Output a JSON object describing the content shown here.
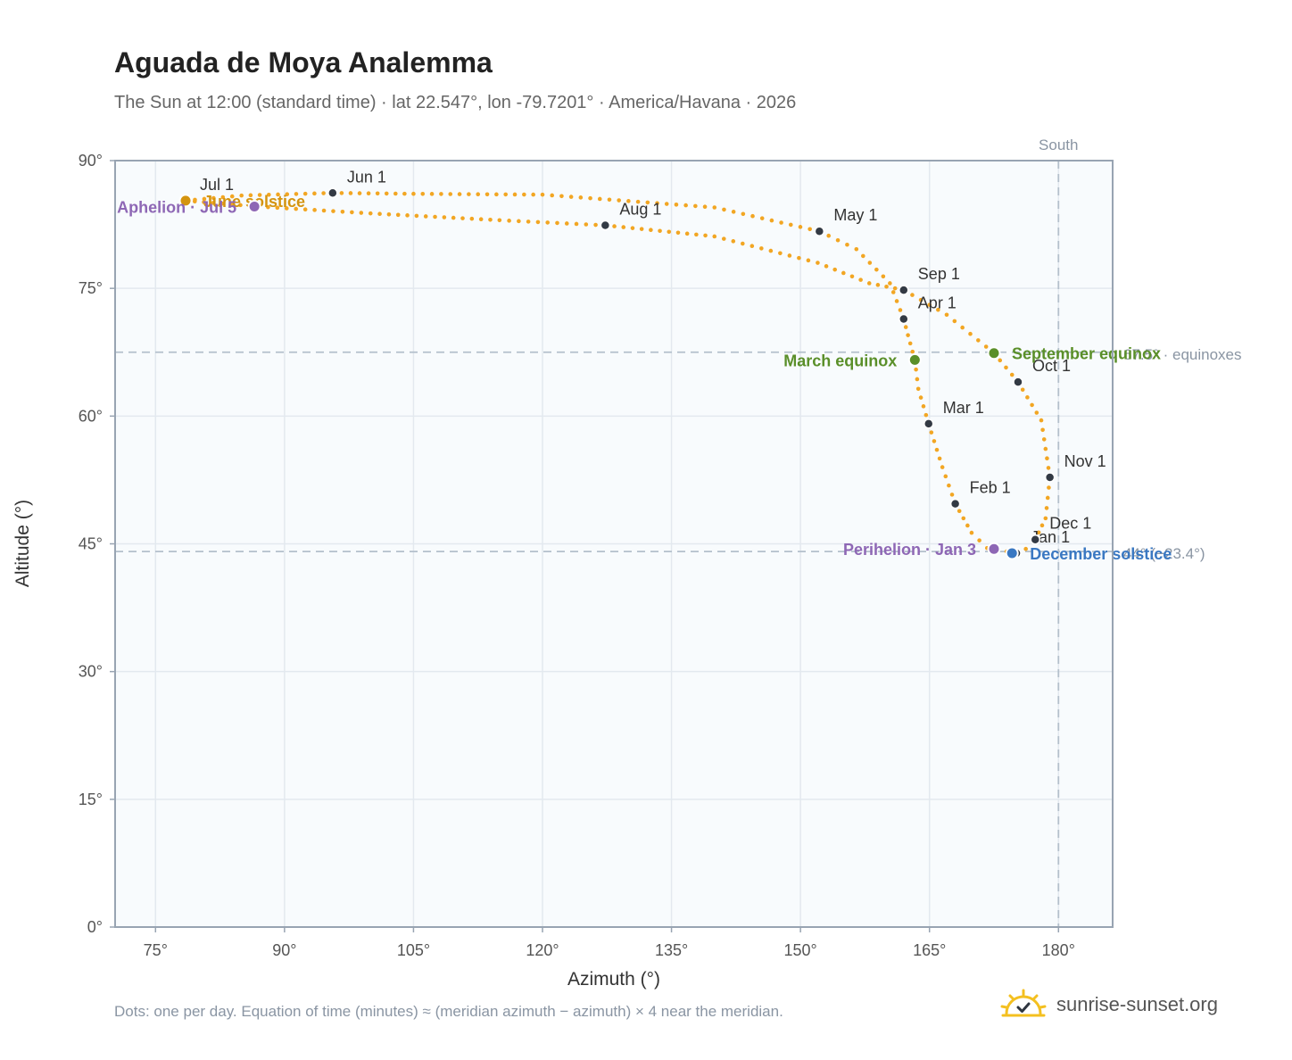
{
  "title": "Aguada de Moya Analemma",
  "subtitle": "The Sun at 12:00 (standard time) · lat 22.547°, lon -79.7201° · America/Havana · 2026",
  "footnote": "Dots: one per day. Equation of time (minutes) ≈ (meridian azimuth − azimuth) × 4 near the meridian.",
  "brand": {
    "name": "sunrise-sunset.org",
    "icon": "sun-logo-icon"
  },
  "colors": {
    "curve": "#f2a623",
    "month_marker": "#333a44",
    "equinox": "#5a8f29",
    "solstice_june": "#d4940f",
    "solstice_december": "#3a78c2",
    "apsis": "#8e67b5",
    "reference_line": "#b4c0cc",
    "plot_bg": "#f8fbfd",
    "grid": "#e3e9ef",
    "frame": "#98a4b2"
  },
  "chart_data": {
    "type": "scatter",
    "title": "Aguada de Moya Analemma",
    "xlabel": "Azimuth (°)",
    "ylabel": "Altitude (°)",
    "xlim": [
      70.3,
      186.3
    ],
    "ylim": [
      0,
      90
    ],
    "x_ticks": [
      75,
      90,
      105,
      120,
      135,
      150,
      165,
      180
    ],
    "x_tick_labels": [
      "75°",
      "90°",
      "105°",
      "120°",
      "135°",
      "150°",
      "165°",
      "180°"
    ],
    "y_ticks": [
      0,
      15,
      30,
      45,
      60,
      75,
      90
    ],
    "y_tick_labels": [
      "0°",
      "15°",
      "30°",
      "45°",
      "60°",
      "75°",
      "90°"
    ],
    "grid": true,
    "series": [
      {
        "style": "one dot per day",
        "points": [
          [
            175.1,
            43.9
          ],
          [
            171.7,
            44.5
          ],
          [
            169.9,
            46.3
          ],
          [
            168.0,
            49.7
          ],
          [
            166.5,
            54.0
          ],
          [
            164.9,
            59.1
          ],
          [
            163.7,
            63.2
          ],
          [
            163.3,
            66.6
          ],
          [
            162.5,
            69.5
          ],
          [
            162.0,
            71.4
          ],
          [
            160.4,
            75.6
          ],
          [
            156.5,
            79.6
          ],
          [
            152.2,
            81.7
          ],
          [
            140.0,
            84.5
          ],
          [
            120.0,
            86.0
          ],
          [
            105.0,
            86.1
          ],
          [
            95.6,
            86.2
          ],
          [
            85.0,
            85.9
          ],
          [
            78.5,
            85.3
          ],
          [
            87.0,
            84.6
          ],
          [
            100.0,
            83.8
          ],
          [
            115.0,
            83.0
          ],
          [
            127.3,
            82.4
          ],
          [
            140.0,
            81.1
          ],
          [
            152.0,
            78.0
          ],
          [
            158.0,
            75.6
          ],
          [
            162.0,
            74.8
          ],
          [
            167.0,
            71.9
          ],
          [
            172.5,
            67.4
          ],
          [
            175.3,
            64.0
          ],
          [
            178.0,
            59.5
          ],
          [
            179.0,
            52.8
          ],
          [
            178.5,
            48.0
          ],
          [
            177.3,
            45.5
          ],
          [
            176.2,
            44.4
          ],
          [
            175.1,
            43.9
          ]
        ]
      }
    ],
    "month_markers": [
      {
        "label": "Jan 1",
        "az": 175.1,
        "alt": 43.9
      },
      {
        "label": "Feb 1",
        "az": 168.0,
        "alt": 49.7
      },
      {
        "label": "Mar 1",
        "az": 164.9,
        "alt": 59.1
      },
      {
        "label": "Apr 1",
        "az": 162.0,
        "alt": 71.4
      },
      {
        "label": "May 1",
        "az": 152.2,
        "alt": 81.7
      },
      {
        "label": "Jun 1",
        "az": 95.6,
        "alt": 86.2
      },
      {
        "label": "Jul 1",
        "az": 78.5,
        "alt": 85.3
      },
      {
        "label": "Aug 1",
        "az": 127.3,
        "alt": 82.4
      },
      {
        "label": "Sep 1",
        "az": 162.0,
        "alt": 74.8
      },
      {
        "label": "Oct 1",
        "az": 175.3,
        "alt": 64.0
      },
      {
        "label": "Nov 1",
        "az": 179.0,
        "alt": 52.8
      },
      {
        "label": "Dec 1",
        "az": 177.3,
        "alt": 45.5
      }
    ],
    "events": [
      {
        "label": "March equinox",
        "az": 163.3,
        "alt": 66.6,
        "kind": "equinox"
      },
      {
        "label": "September equinox",
        "az": 172.5,
        "alt": 67.4,
        "kind": "equinox"
      },
      {
        "label": "June solstice",
        "az": 78.5,
        "alt": 85.3,
        "kind": "solstice_june"
      },
      {
        "label": "December solstice",
        "az": 174.6,
        "alt": 43.9,
        "kind": "solstice_december"
      },
      {
        "label": "Aphelion · Jul 5",
        "az": 86.5,
        "alt": 84.6,
        "kind": "apsis"
      },
      {
        "label": "Perihelion · Jan 3",
        "az": 172.5,
        "alt": 44.4,
        "kind": "apsis"
      }
    ],
    "reference_lines": [
      {
        "orientation": "horizontal",
        "value": 67.5,
        "label": "67.5° · equinoxes"
      },
      {
        "orientation": "horizontal",
        "value": 44.1,
        "label": "44° (−23.4°)"
      },
      {
        "orientation": "vertical",
        "value": 180,
        "label": "South"
      }
    ]
  }
}
